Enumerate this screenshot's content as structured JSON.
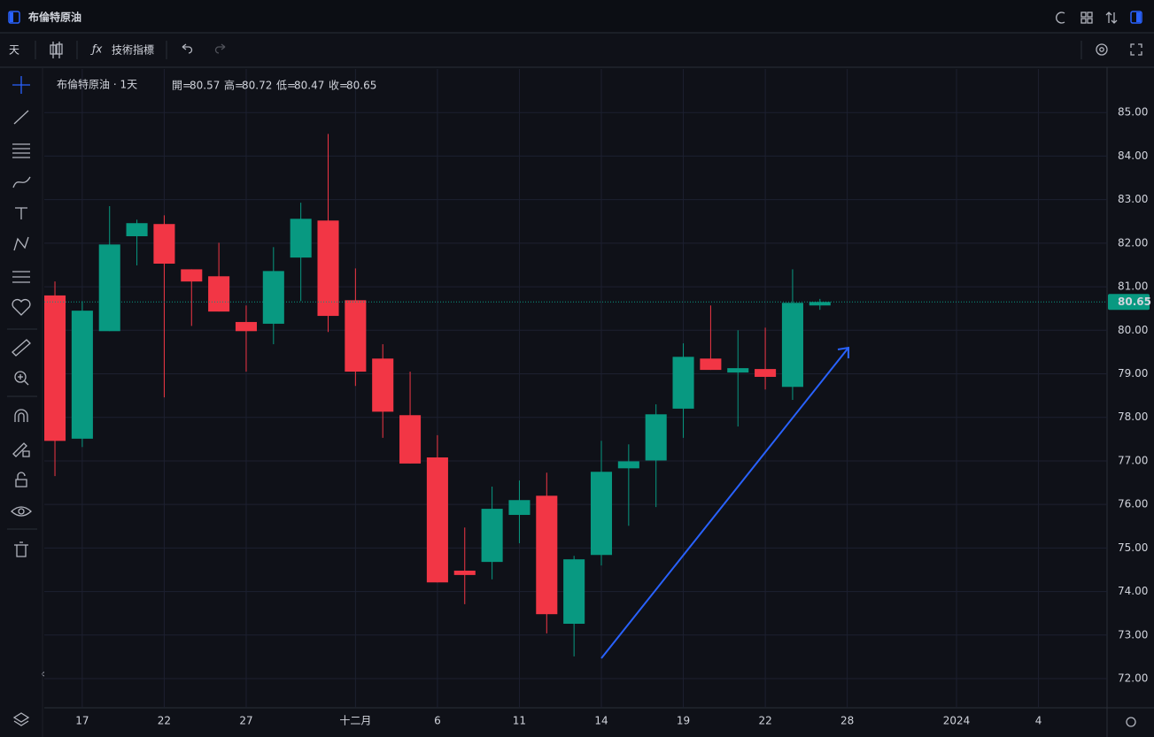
{
  "header": {
    "title": "布倫特原油",
    "interval": "天",
    "indicators": "技術指標"
  },
  "chart_data": {
    "type": "candlestick",
    "title": "布倫特原油 · 1天",
    "ohlc_labels": [
      "開=",
      "高=",
      "低=",
      "收="
    ],
    "up_color": "#089981",
    "down_color": "#f23645",
    "open": [
      80.8,
      77.51,
      79.98,
      82.16,
      82.44,
      81.4,
      81.24,
      80.19,
      80.15,
      81.67,
      82.52,
      80.69,
      79.35,
      78.05,
      77.08,
      74.48,
      74.68,
      75.76,
      76.2,
      73.26,
      74.84,
      76.83,
      77.01,
      78.2,
      79.35,
      79.03,
      79.11,
      78.7,
      80.57
    ],
    "high": [
      81.12,
      80.67,
      82.85,
      82.54,
      82.64,
      81.4,
      82.01,
      80.57,
      81.91,
      82.93,
      84.51,
      81.42,
      79.68,
      79.05,
      77.59,
      75.47,
      76.41,
      76.55,
      76.73,
      74.82,
      77.46,
      77.38,
      78.3,
      79.7,
      80.57,
      80.0,
      80.06,
      81.4,
      80.72
    ],
    "low": [
      76.65,
      77.32,
      79.98,
      81.49,
      78.46,
      80.1,
      80.43,
      79.05,
      79.68,
      80.67,
      79.96,
      78.72,
      77.53,
      76.94,
      74.21,
      73.71,
      74.28,
      75.11,
      73.04,
      72.51,
      74.6,
      75.51,
      75.94,
      77.53,
      79.09,
      77.79,
      78.64,
      78.4,
      80.47
    ],
    "close": [
      77.46,
      80.45,
      81.97,
      82.46,
      81.53,
      81.12,
      80.43,
      79.98,
      81.36,
      82.56,
      80.33,
      79.05,
      78.13,
      76.94,
      74.21,
      74.38,
      75.9,
      76.1,
      73.48,
      74.74,
      76.75,
      76.99,
      78.07,
      79.39,
      79.09,
      79.13,
      78.93,
      80.63,
      80.65
    ],
    "xlim": [
      -0.39,
      38.51
    ],
    "xticks": [
      {
        "value": 1,
        "label": "17"
      },
      {
        "value": 4,
        "label": "22"
      },
      {
        "value": 7,
        "label": "27"
      },
      {
        "value": 11,
        "label": "十二月"
      },
      {
        "value": 14,
        "label": "6"
      },
      {
        "value": 17,
        "label": "11"
      },
      {
        "value": 20,
        "label": "14"
      },
      {
        "value": 23,
        "label": "19"
      },
      {
        "value": 26,
        "label": "22"
      },
      {
        "value": 29,
        "label": "28"
      },
      {
        "value": 33,
        "label": "2024"
      },
      {
        "value": 36,
        "label": "4"
      }
    ],
    "ylim": [
      71.33,
      86.0
    ],
    "yticks": [
      {
        "value": 72,
        "label": "72.00"
      },
      {
        "value": 73,
        "label": "73.00"
      },
      {
        "value": 74,
        "label": "74.00"
      },
      {
        "value": 75,
        "label": "75.00"
      },
      {
        "value": 76,
        "label": "76.00"
      },
      {
        "value": 77,
        "label": "77.00"
      },
      {
        "value": 78,
        "label": "78.00"
      },
      {
        "value": 79,
        "label": "79.00"
      },
      {
        "value": 80,
        "label": "80.00"
      },
      {
        "value": 81,
        "label": "81.00"
      },
      {
        "value": 82,
        "label": "82.00"
      },
      {
        "value": 83,
        "label": "83.00"
      },
      {
        "value": 84,
        "label": "84.00"
      },
      {
        "value": 85,
        "label": "85.00"
      }
    ],
    "grid": true
  }
}
